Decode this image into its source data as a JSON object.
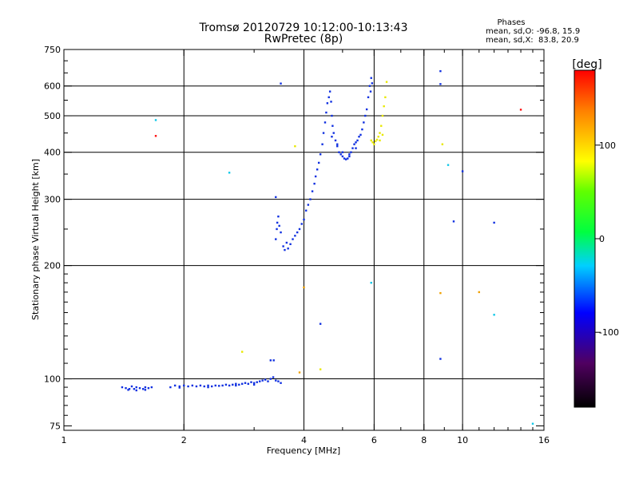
{
  "chart_data": {
    "type": "scatter",
    "title": "Tromsø 20120729 10:12:00-10:13:43",
    "subtitle": "RwPretec (8p)",
    "stats": {
      "heading": "Phases",
      "line1": "mean, sd,O: -96.8, 15.9",
      "line2": "mean, sd,X:  83.8, 20.9"
    },
    "xlabel": "Frequency [MHz]",
    "ylabel": "Stationary phase Virtual Height [km]",
    "x_scale": "log2",
    "y_scale": "log",
    "xlim": [
      1,
      16
    ],
    "ylim": [
      73,
      750
    ],
    "x_ticks": [
      1,
      2,
      4,
      6,
      8,
      10,
      16
    ],
    "x_tick_labels": [
      "1",
      "2",
      "4",
      "6",
      "8",
      "10",
      "16"
    ],
    "x_minor_ticks": [
      3,
      5,
      7,
      9,
      11,
      12,
      13,
      14,
      15
    ],
    "x_grid": [
      2,
      4,
      6,
      8,
      10
    ],
    "y_ticks": [
      75,
      100,
      200,
      300,
      400,
      500,
      600,
      750
    ],
    "y_tick_labels": [
      "75",
      "100",
      "200",
      "300",
      "400",
      "500",
      "600",
      "750"
    ],
    "y_minor_ticks": [
      80,
      85,
      90,
      95,
      110,
      120,
      130,
      140,
      150,
      160,
      170,
      180,
      190,
      250,
      350,
      450,
      550,
      650,
      700
    ],
    "y_grid": [
      100,
      200,
      300,
      400,
      500,
      600
    ],
    "colorbar": {
      "label": "[deg]",
      "range": [
        -180,
        180
      ],
      "ticks": [
        100,
        0,
        -100
      ],
      "tick_labels": [
        "100",
        "0",
        "-100"
      ]
    },
    "series": [
      {
        "color": "#1030e0",
        "phase": -100,
        "points": [
          [
            1.4,
            95
          ],
          [
            1.43,
            94.5
          ],
          [
            1.46,
            94
          ],
          [
            1.48,
            95.5
          ],
          [
            1.5,
            94
          ],
          [
            1.52,
            95
          ],
          [
            1.55,
            94.5
          ],
          [
            1.58,
            94
          ],
          [
            1.6,
            95
          ],
          [
            1.63,
            94.5
          ],
          [
            1.66,
            95
          ],
          [
            1.45,
            93.5
          ],
          [
            1.52,
            93.2
          ],
          [
            1.6,
            93.5
          ],
          [
            1.85,
            95
          ],
          [
            1.9,
            96
          ],
          [
            1.95,
            95.5
          ],
          [
            2.0,
            96
          ],
          [
            2.05,
            95.5
          ],
          [
            2.1,
            96
          ],
          [
            2.15,
            95.5
          ],
          [
            2.2,
            96
          ],
          [
            2.25,
            95.5
          ],
          [
            2.3,
            96
          ],
          [
            2.35,
            95.5
          ],
          [
            2.4,
            96
          ],
          [
            2.45,
            95.8
          ],
          [
            2.5,
            96
          ],
          [
            2.55,
            96.5
          ],
          [
            2.6,
            96
          ],
          [
            2.65,
            96.5
          ],
          [
            2.7,
            97
          ],
          [
            2.75,
            96.5
          ],
          [
            2.8,
            97
          ],
          [
            2.85,
            97.5
          ],
          [
            2.9,
            97
          ],
          [
            2.95,
            98
          ],
          [
            3.0,
            97.5
          ],
          [
            3.05,
            98
          ],
          [
            3.1,
            98.5
          ],
          [
            3.15,
            99
          ],
          [
            3.2,
            99.5
          ],
          [
            3.25,
            98.5
          ],
          [
            3.3,
            100
          ],
          [
            3.35,
            101
          ],
          [
            3.4,
            99
          ],
          [
            3.45,
            98.5
          ],
          [
            3.5,
            97.5
          ],
          [
            1.95,
            94.8
          ],
          [
            2.3,
            95
          ],
          [
            2.7,
            96
          ],
          [
            3.0,
            96.5
          ],
          [
            3.3,
            112
          ],
          [
            3.36,
            112
          ],
          [
            3.4,
            235
          ],
          [
            3.43,
            260
          ],
          [
            3.45,
            270
          ],
          [
            3.42,
            250
          ],
          [
            3.47,
            255
          ],
          [
            3.5,
            245
          ],
          [
            3.55,
            225
          ],
          [
            3.58,
            220
          ],
          [
            3.62,
            230
          ],
          [
            3.65,
            222
          ],
          [
            3.7,
            228
          ],
          [
            3.75,
            235
          ],
          [
            3.8,
            240
          ],
          [
            3.85,
            245
          ],
          [
            3.9,
            250
          ],
          [
            3.95,
            258
          ],
          [
            4.0,
            265
          ],
          [
            4.05,
            280
          ],
          [
            4.1,
            290
          ],
          [
            4.15,
            300
          ],
          [
            4.2,
            315
          ],
          [
            4.25,
            330
          ],
          [
            4.28,
            345
          ],
          [
            4.32,
            360
          ],
          [
            4.36,
            375
          ],
          [
            4.4,
            395
          ],
          [
            4.45,
            420
          ],
          [
            4.48,
            450
          ],
          [
            4.52,
            480
          ],
          [
            4.55,
            510
          ],
          [
            4.58,
            540
          ],
          [
            4.62,
            560
          ],
          [
            4.65,
            580
          ],
          [
            4.68,
            545
          ],
          [
            4.7,
            500
          ],
          [
            4.72,
            470
          ],
          [
            4.75,
            450
          ],
          [
            4.8,
            430
          ],
          [
            4.85,
            415
          ],
          [
            4.9,
            400
          ],
          [
            4.95,
            395
          ],
          [
            5.0,
            390
          ],
          [
            5.05,
            385
          ],
          [
            5.1,
            383
          ],
          [
            5.15,
            385
          ],
          [
            5.2,
            390
          ],
          [
            5.25,
            400
          ],
          [
            5.3,
            410
          ],
          [
            5.35,
            420
          ],
          [
            5.4,
            425
          ],
          [
            5.45,
            430
          ],
          [
            5.5,
            440
          ],
          [
            5.55,
            445
          ],
          [
            5.6,
            460
          ],
          [
            5.65,
            480
          ],
          [
            5.7,
            500
          ],
          [
            5.75,
            520
          ],
          [
            5.8,
            560
          ],
          [
            5.85,
            600
          ],
          [
            5.9,
            630
          ],
          [
            5.93,
            610
          ],
          [
            5.88,
            580
          ],
          [
            4.7,
            440
          ],
          [
            4.85,
            420
          ],
          [
            5.0,
            400
          ],
          [
            5.2,
            395
          ],
          [
            5.4,
            410
          ],
          [
            3.4,
            304
          ],
          [
            4.4,
            140
          ],
          [
            8.8,
            113
          ],
          [
            8.8,
            657
          ],
          [
            8.8,
            607
          ],
          [
            9.5,
            262
          ],
          [
            10.0,
            356
          ],
          [
            12.0,
            260
          ],
          [
            3.5,
            609
          ]
        ]
      },
      {
        "color": "#e8e800",
        "phase": 95,
        "points": [
          [
            5.9,
            430
          ],
          [
            5.95,
            425
          ],
          [
            6.0,
            420
          ],
          [
            6.05,
            428
          ],
          [
            6.1,
            432
          ],
          [
            6.15,
            440
          ],
          [
            6.2,
            450
          ],
          [
            6.25,
            470
          ],
          [
            6.3,
            500
          ],
          [
            6.35,
            530
          ],
          [
            6.4,
            560
          ],
          [
            6.45,
            615
          ],
          [
            6.2,
            430
          ],
          [
            6.3,
            445
          ],
          [
            3.8,
            415
          ],
          [
            2.8,
            118
          ],
          [
            4.4,
            106
          ],
          [
            8.9,
            420
          ]
        ]
      },
      {
        "color": "#f0a000",
        "phase": 120,
        "points": [
          [
            4.0,
            175
          ],
          [
            3.9,
            104
          ],
          [
            8.8,
            169
          ],
          [
            11.0,
            170
          ]
        ]
      },
      {
        "color": "#ff1010",
        "phase": 170,
        "points": [
          [
            1.7,
            442
          ],
          [
            14.0,
            519
          ]
        ]
      },
      {
        "color": "#10c8e8",
        "phase": -30,
        "points": [
          [
            1.7,
            487
          ],
          [
            2.6,
            353
          ],
          [
            5.9,
            180
          ],
          [
            9.2,
            370
          ],
          [
            12.0,
            148
          ],
          [
            15.0,
            76
          ]
        ]
      }
    ]
  }
}
